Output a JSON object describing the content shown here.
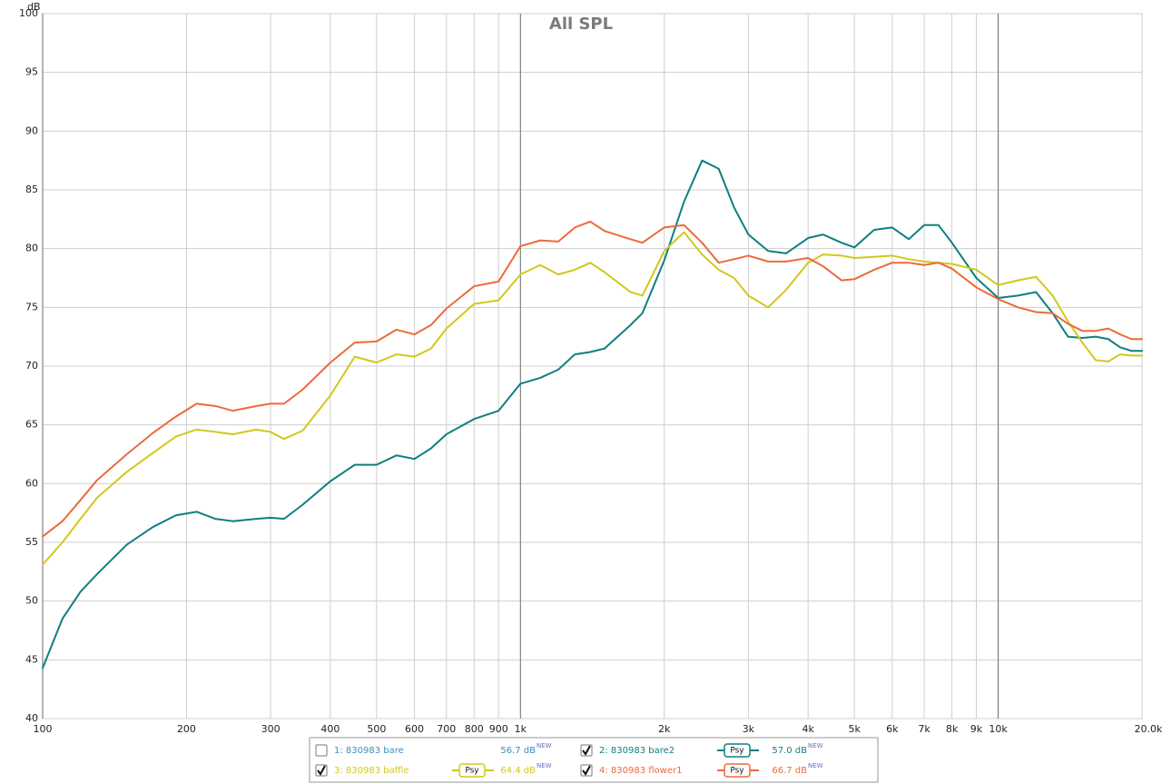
{
  "chart_data": {
    "type": "line",
    "title": "All SPL",
    "y_label": "dB",
    "log_x": true,
    "grid": true,
    "xlim": [
      100,
      20000
    ],
    "ylim": [
      40,
      100
    ],
    "xticks": [
      100,
      200,
      300,
      400,
      500,
      600,
      700,
      800,
      900,
      {
        "value": 1000,
        "label": "1k"
      },
      {
        "value": 2000,
        "label": "2k"
      },
      {
        "value": 3000,
        "label": "3k"
      },
      {
        "value": 4000,
        "label": "4k"
      },
      {
        "value": 5000,
        "label": "5k"
      },
      {
        "value": 6000,
        "label": "6k"
      },
      {
        "value": 7000,
        "label": "7k"
      },
      {
        "value": 8000,
        "label": "8k"
      },
      {
        "value": 9000,
        "label": "9k"
      },
      {
        "value": 10000,
        "label": "10k"
      },
      {
        "value": 20000,
        "label": "20.0kHz"
      }
    ],
    "yticks": [
      40,
      45,
      50,
      55,
      60,
      65,
      70,
      75,
      80,
      85,
      90,
      95,
      100
    ],
    "x": [
      100,
      110,
      120,
      130,
      150,
      170,
      190,
      210,
      230,
      250,
      280,
      300,
      320,
      350,
      400,
      450,
      500,
      550,
      600,
      650,
      700,
      800,
      900,
      1000,
      1100,
      1200,
      1300,
      1400,
      1500,
      1700,
      1800,
      2000,
      2200,
      2400,
      2600,
      2800,
      3000,
      3300,
      3600,
      4000,
      4300,
      4700,
      5000,
      5500,
      6000,
      6500,
      7000,
      7500,
      8000,
      9000,
      10000,
      11000,
      12000,
      13000,
      14000,
      15000,
      16000,
      17000,
      18000,
      19000,
      20000
    ],
    "hidden_series": [
      {
        "name": "1: 830983 bare",
        "color": "#3a8fc0",
        "level": "56.7 dB",
        "level_tag": "NEW",
        "checked": false
      }
    ],
    "series": [
      {
        "name": "2: 830983 bare2",
        "color": "#0f7f80",
        "level": "57.0 dB",
        "level_tag": "NEW",
        "checked": true,
        "smoothing": "Psy",
        "values": [
          44.3,
          48.5,
          50.8,
          52.3,
          54.8,
          56.3,
          57.3,
          57.6,
          57.0,
          56.8,
          57.0,
          57.1,
          57.0,
          58.2,
          60.2,
          61.6,
          61.6,
          62.4,
          62.1,
          63.0,
          64.2,
          65.5,
          66.2,
          68.5,
          69.0,
          69.7,
          71.0,
          71.2,
          71.5,
          73.5,
          74.5,
          79.0,
          84.0,
          87.5,
          86.8,
          83.5,
          81.2,
          79.8,
          79.6,
          80.9,
          81.2,
          80.5,
          80.1,
          81.6,
          81.8,
          80.8,
          82.0,
          82.0,
          80.5,
          77.5,
          75.8,
          76.0,
          76.3,
          74.5,
          72.5,
          72.4,
          72.5,
          72.3,
          71.6,
          71.3,
          71.3
        ]
      },
      {
        "name": "3: 830983 baffle",
        "color": "#d2c81c",
        "level": "64.4 dB",
        "level_tag": "NEW",
        "checked": true,
        "smoothing": "Psy",
        "values": [
          53.1,
          55.0,
          57.0,
          58.8,
          61.0,
          62.6,
          64.0,
          64.6,
          64.4,
          64.2,
          64.6,
          64.4,
          63.8,
          64.5,
          67.5,
          70.8,
          70.3,
          71.0,
          70.8,
          71.5,
          73.2,
          75.3,
          75.6,
          77.8,
          78.6,
          77.8,
          78.2,
          78.8,
          78.0,
          76.3,
          76.0,
          79.8,
          81.4,
          79.5,
          78.2,
          77.5,
          76.0,
          75.0,
          76.5,
          78.8,
          79.5,
          79.4,
          79.2,
          79.3,
          79.4,
          79.1,
          78.9,
          78.8,
          78.7,
          78.2,
          76.9,
          77.3,
          77.6,
          76.0,
          73.8,
          72.0,
          70.5,
          70.4,
          71.0,
          70.9,
          70.9
        ]
      },
      {
        "name": "4: 830983 flower1",
        "color": "#ec6a3c",
        "level": "66.7 dB",
        "level_tag": "NEW",
        "checked": true,
        "smoothing": "Psy",
        "values": [
          55.5,
          56.8,
          58.6,
          60.3,
          62.5,
          64.3,
          65.7,
          66.8,
          66.6,
          66.2,
          66.6,
          66.8,
          66.8,
          68.0,
          70.3,
          72.0,
          72.1,
          73.1,
          72.7,
          73.5,
          74.9,
          76.8,
          77.2,
          80.2,
          80.7,
          80.6,
          81.8,
          82.3,
          81.5,
          80.8,
          80.5,
          81.8,
          82.0,
          80.5,
          78.8,
          79.1,
          79.4,
          78.9,
          78.9,
          79.2,
          78.5,
          77.3,
          77.4,
          78.2,
          78.8,
          78.8,
          78.6,
          78.8,
          78.3,
          76.7,
          75.7,
          75.0,
          74.6,
          74.5,
          73.6,
          73.0,
          73.0,
          73.2,
          72.7,
          72.3,
          72.3
        ]
      }
    ]
  }
}
